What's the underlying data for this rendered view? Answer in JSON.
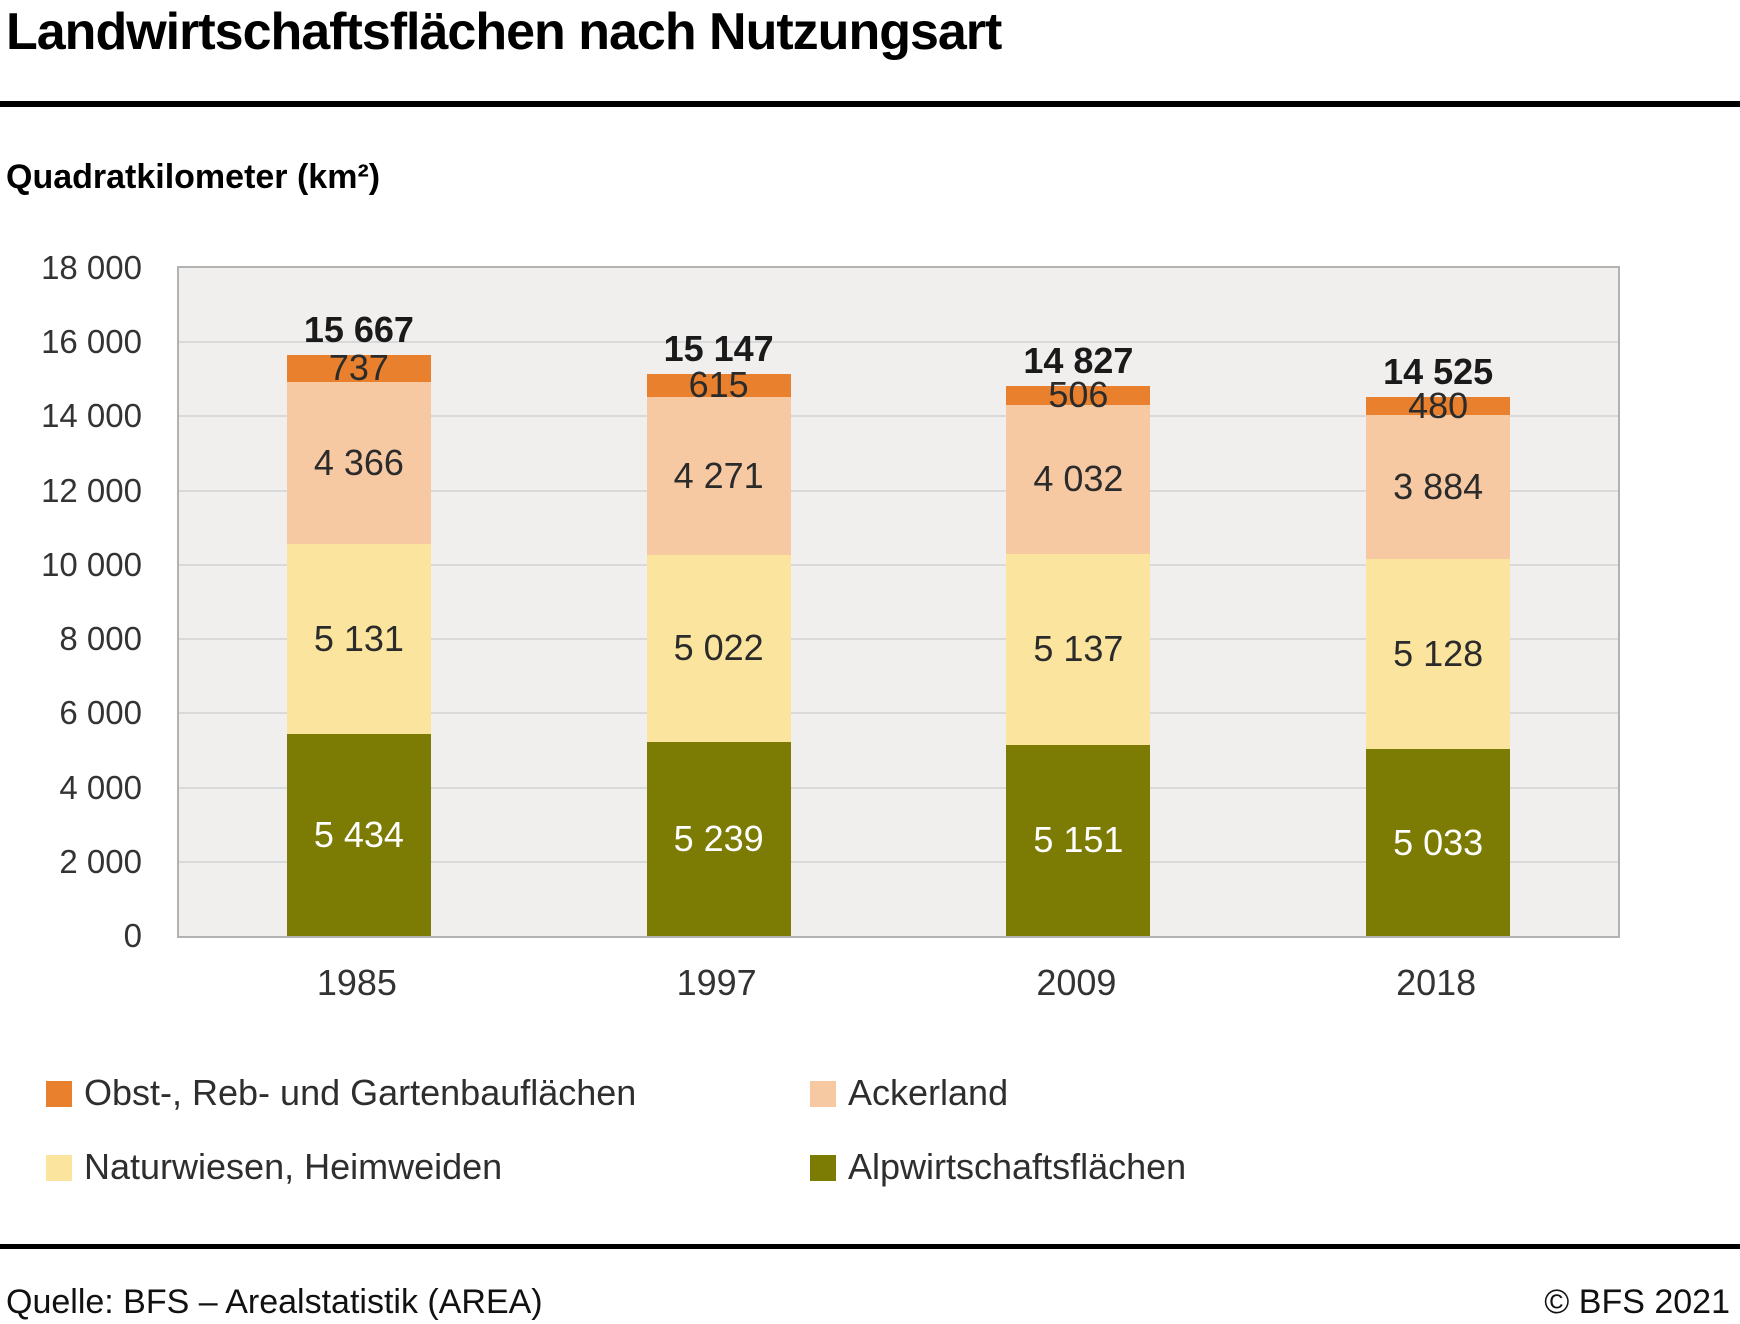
{
  "title": "Landwirtschaftsflächen nach Nutzungsart",
  "subtitle": "Quadratkilometer (km²)",
  "colors": {
    "obst_reb_garten": "#E8802D",
    "ackerland": "#F6C9A3",
    "naturwiesen_heimweiden": "#FBE49D",
    "alpwirtschaft": "#7C7B04",
    "plot_background": "#F0EFEE",
    "gridline": "#D9D9D9",
    "plot_border": "#B2B2B2",
    "title_rule": "#000000"
  },
  "chart_data": {
    "type": "bar",
    "stacked": true,
    "title": "Landwirtschaftsflächen nach Nutzungsart",
    "ylabel": "Quadratkilometer (km²)",
    "xlabel": "",
    "categories": [
      "1985",
      "1997",
      "2009",
      "2018"
    ],
    "series": [
      {
        "name": "Obst-, Reb- und Gartenbauflächen",
        "color": "#E8802D",
        "label_color": "#2B2B2B",
        "values": [
          737,
          615,
          506,
          480
        ],
        "labels": [
          "737",
          "615",
          "506",
          "480"
        ]
      },
      {
        "name": "Ackerland",
        "color": "#F6C9A3",
        "label_color": "#2B2B2B",
        "values": [
          4366,
          4271,
          4032,
          3884
        ],
        "labels": [
          "4 366",
          "4 271",
          "4 032",
          "3 884"
        ]
      },
      {
        "name": "Naturwiesen, Heimweiden",
        "color": "#FBE49D",
        "label_color": "#2B2B2B",
        "values": [
          5131,
          5022,
          5137,
          5128
        ],
        "labels": [
          "5 131",
          "5 022",
          "5 137",
          "5 128"
        ]
      },
      {
        "name": "Alpwirtschaftsflächen",
        "color": "#7C7B04",
        "label_color": "#FFFFFF",
        "values": [
          5434,
          5239,
          5151,
          5033
        ],
        "labels": [
          "5 434",
          "5 239",
          "5 151",
          "5 033"
        ]
      }
    ],
    "totals": [
      15667,
      15147,
      14827,
      14525
    ],
    "totals_labels": [
      "15 667",
      "15 147",
      "14 827",
      "14 525"
    ],
    "ylim": [
      0,
      18000
    ],
    "ytick_step": 2000,
    "yticks": [
      {
        "value": 18000,
        "label": "18 000"
      },
      {
        "value": 16000,
        "label": "16 000"
      },
      {
        "value": 14000,
        "label": "14 000"
      },
      {
        "value": 12000,
        "label": "12 000"
      },
      {
        "value": 10000,
        "label": "10 000"
      },
      {
        "value": 8000,
        "label": "8 000"
      },
      {
        "value": 6000,
        "label": "6 000"
      },
      {
        "value": 4000,
        "label": "4 000"
      },
      {
        "value": 2000,
        "label": "2 000"
      },
      {
        "value": 0,
        "label": "0"
      }
    ],
    "grid": true,
    "legend_position": "bottom"
  },
  "legend": {
    "items": [
      {
        "label": "Obst-, Reb- und Gartenbauflächen",
        "color": "#E8802D"
      },
      {
        "label": "Ackerland",
        "color": "#F6C9A3"
      },
      {
        "label": "Naturwiesen, Heimweiden",
        "color": "#FBE49D"
      },
      {
        "label": "Alpwirtschaftsflächen",
        "color": "#7C7B04"
      }
    ]
  },
  "footer": {
    "source": "Quelle: BFS – Arealstatistik (AREA)",
    "copyright": "© BFS 2021"
  }
}
